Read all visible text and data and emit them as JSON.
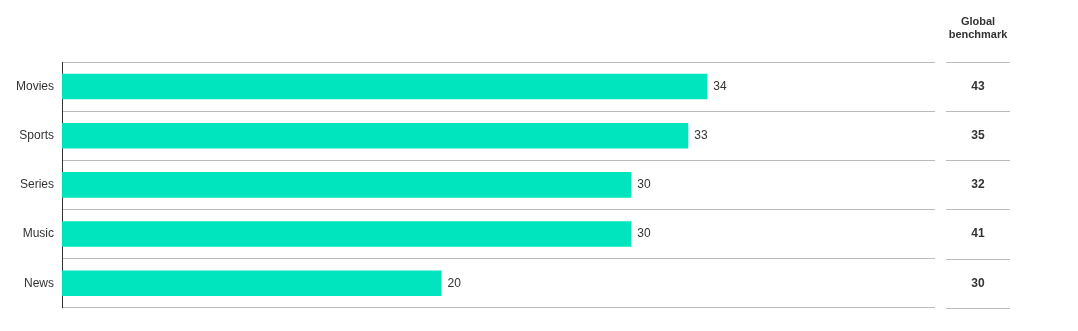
{
  "chart_data": {
    "type": "bar",
    "orientation": "horizontal",
    "categories": [
      "Movies",
      "Sports",
      "Series",
      "Music",
      "News"
    ],
    "series": [
      {
        "color": "#00e5be",
        "values": [
          34,
          33,
          30,
          30,
          20
        ]
      }
    ],
    "annotations": [
      "Global benchmark",
      "43",
      "35",
      "32",
      "41",
      "30"
    ],
    "xlim": [
      0,
      46
    ],
    "tick_labels": "y",
    "grid": "y",
    "data_labels": true
  }
}
